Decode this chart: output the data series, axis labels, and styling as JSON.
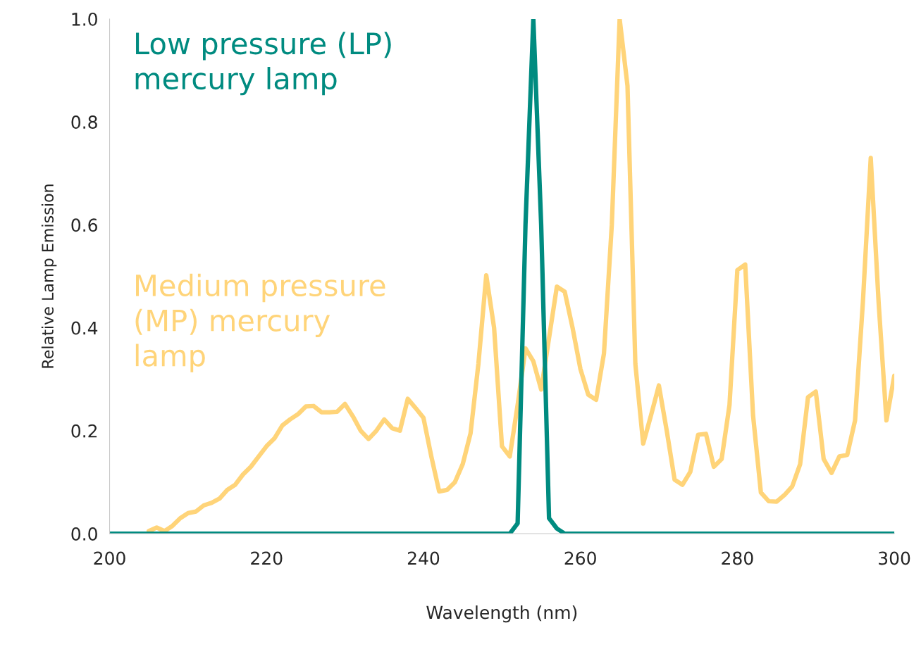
{
  "chart_data": {
    "type": "line",
    "xlabel": "Wavelength (nm)",
    "ylabel": "Relative Lamp Emission",
    "xlim": [
      200,
      300
    ],
    "ylim": [
      0,
      1.0
    ],
    "xticks": [
      200,
      220,
      240,
      260,
      280,
      300
    ],
    "yticks": [
      {
        "value": 0,
        "label": "0.0"
      },
      {
        "value": 0.2,
        "label": "0.2"
      },
      {
        "value": 0.4,
        "label": "0.4"
      },
      {
        "value": 0.6,
        "label": "0.6"
      },
      {
        "value": 0.8,
        "label": "0.8"
      },
      {
        "value": 1.0,
        "label": "1.0"
      }
    ],
    "grid": false,
    "legend": false,
    "marker": "none",
    "line_style": "solid",
    "x": [
      200,
      201,
      202,
      203,
      204,
      205,
      206,
      207,
      208,
      209,
      210,
      211,
      212,
      213,
      214,
      215,
      216,
      217,
      218,
      219,
      220,
      221,
      222,
      223,
      224,
      225,
      226,
      227,
      228,
      229,
      230,
      231,
      232,
      233,
      234,
      235,
      236,
      237,
      238,
      239,
      240,
      241,
      242,
      243,
      244,
      245,
      246,
      247,
      248,
      249,
      250,
      251,
      252,
      253,
      254,
      255,
      256,
      257,
      258,
      259,
      260,
      261,
      262,
      263,
      264,
      265,
      266,
      267,
      268,
      269,
      270,
      271,
      272,
      273,
      274,
      275,
      276,
      277,
      278,
      279,
      280,
      281,
      282,
      283,
      284,
      285,
      286,
      287,
      288,
      289,
      290,
      291,
      292,
      293,
      294,
      295,
      296,
      297,
      298,
      299,
      300
    ],
    "series": [
      {
        "name": "Medium pressure\n(MP) mercury\nlamp",
        "color": "#ffd479",
        "values": [
          null,
          null,
          null,
          null,
          null,
          0.005,
          0.012,
          0.005,
          0.015,
          0.03,
          0.04,
          0.043,
          0.055,
          0.06,
          0.068,
          0.085,
          0.095,
          0.115,
          0.13,
          0.15,
          0.17,
          0.185,
          0.21,
          0.222,
          0.232,
          0.247,
          0.248,
          0.236,
          0.236,
          0.237,
          0.252,
          0.228,
          0.2,
          0.184,
          0.2,
          0.222,
          0.205,
          0.2,
          0.262,
          0.244,
          0.225,
          0.15,
          0.082,
          0.085,
          0.1,
          0.135,
          0.195,
          0.33,
          0.502,
          0.4,
          0.17,
          0.15,
          0.25,
          0.36,
          0.335,
          0.28,
          0.38,
          0.48,
          0.47,
          0.4,
          0.32,
          0.27,
          0.26,
          0.35,
          0.6,
          1.0,
          0.87,
          0.33,
          0.175,
          0.23,
          0.288,
          0.2,
          0.105,
          0.095,
          0.12,
          0.192,
          0.194,
          0.13,
          0.145,
          0.25,
          0.512,
          0.523,
          0.23,
          0.08,
          0.063,
          0.062,
          0.075,
          0.092,
          0.135,
          0.265,
          0.276,
          0.145,
          0.118,
          0.15,
          0.153,
          0.22,
          0.45,
          0.73,
          0.45,
          0.22,
          0.307
        ]
      },
      {
        "name": "Low pressure (LP)\nmercury lamp",
        "color": "#008b80",
        "values": [
          0,
          0,
          0,
          0,
          0,
          0,
          0,
          0,
          0,
          0,
          0,
          0,
          0,
          0,
          0,
          0,
          0,
          0,
          0,
          0,
          0,
          0,
          0,
          0,
          0,
          0,
          0,
          0,
          0,
          0,
          0,
          0,
          0,
          0,
          0,
          0,
          0,
          0,
          0,
          0,
          0,
          0,
          0,
          0,
          0,
          0,
          0,
          0,
          0,
          0,
          0,
          0,
          0.02,
          0.6,
          1.0,
          0.6,
          0.03,
          0.01,
          0,
          0,
          0,
          0,
          0,
          0,
          0,
          0,
          0,
          0,
          0,
          0,
          0,
          0,
          0,
          0,
          0,
          0,
          0,
          0,
          0,
          0,
          0,
          0,
          0,
          0,
          0,
          0,
          0,
          0,
          0,
          0,
          0,
          0,
          0,
          0,
          0,
          0,
          0,
          0,
          0,
          0,
          0
        ]
      }
    ]
  }
}
